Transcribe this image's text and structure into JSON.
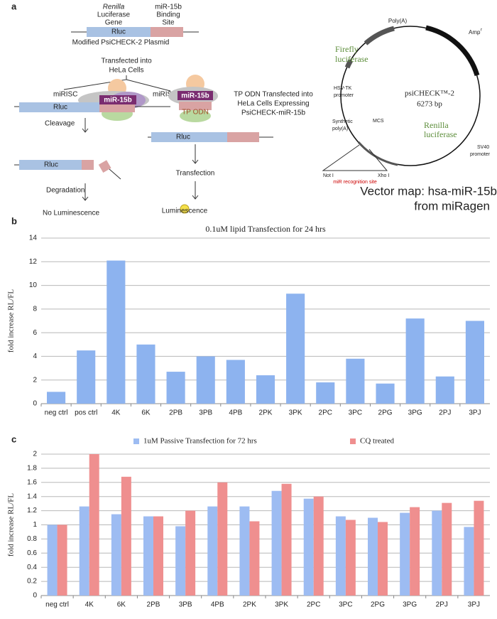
{
  "diagram": {
    "panel_label": "a",
    "gene_top": [
      "Renilla",
      "Luciferase",
      "Gene"
    ],
    "site_top": [
      "miR-15b",
      "Binding",
      "Site"
    ],
    "rluc": "Rluc",
    "plasmid": "Modified PsiCHECK-2 Plasmid",
    "transfected": [
      "Transfected into",
      "HeLa Cells"
    ],
    "mirisc": "miRISC",
    "mir": "miR-15b",
    "tp_odn": "TP ODN",
    "tp_text": [
      "TP ODN Transfected into",
      "HeLa Cells Expressing",
      "PsiCHECK-miR-15b"
    ],
    "cleavage": "Cleavage",
    "degradation": "Degradation",
    "no_lum": "No Luminescence",
    "transfection": "Transfection",
    "lum": "Luminescence",
    "vector": {
      "polya": "Poly(A)",
      "amp": "Amp",
      "amp_sup": "r",
      "firefly": [
        "Firefly",
        "luciferase"
      ],
      "hsv": [
        "HSV-TK",
        "promoter"
      ],
      "name": "psiCHECK™-2",
      "size": "6273 bp",
      "synthetic": [
        "Synthetic",
        "poly(A)"
      ],
      "mcs": "MCS",
      "renilla": [
        "Renilla",
        "luciferase"
      ],
      "sv40": [
        "SV40",
        "promoter"
      ],
      "noti": "Not I",
      "xhoi": "Xho I",
      "recog": "miR recognition site",
      "caption": [
        "Vector map: hsa-miR-15b",
        "from miRagen"
      ]
    }
  },
  "chart_data": [
    {
      "type": "bar",
      "panel_label": "b",
      "title": "0.1uM lipid Transfection for 24 hrs",
      "y_label": "fold increase RL/FL",
      "categories": [
        "neg ctrl",
        "pos ctrl",
        "4K",
        "6K",
        "2PB",
        "3PB",
        "4PB",
        "2PK",
        "3PK",
        "2PC",
        "3PC",
        "2PG",
        "3PG",
        "2PJ",
        "3PJ"
      ],
      "series": [
        {
          "color": "#8db3ef",
          "values": [
            1.0,
            4.5,
            12.1,
            5.0,
            2.7,
            4.0,
            3.7,
            2.4,
            9.3,
            1.8,
            3.8,
            1.7,
            7.2,
            2.3,
            7.0
          ]
        }
      ],
      "ylim": [
        0,
        14
      ],
      "yticks": [
        0,
        2,
        4,
        6,
        8,
        10,
        12,
        14
      ],
      "grid": true
    },
    {
      "type": "bar",
      "panel_label": "c",
      "y_label": "fold increase RL/FL",
      "categories": [
        "neg ctrl",
        "4K",
        "6K",
        "2PB",
        "3PB",
        "4PB",
        "2PK",
        "3PK",
        "2PC",
        "3PC",
        "2PG",
        "3PG",
        "2PJ",
        "3PJ"
      ],
      "series": [
        {
          "name": "1uM Passive Transfection for 72 hrs",
          "color": "#9dbcf2",
          "values": [
            1.0,
            1.26,
            1.15,
            1.12,
            0.98,
            1.26,
            1.26,
            1.48,
            1.37,
            1.12,
            1.1,
            1.17,
            1.2,
            0.97
          ]
        },
        {
          "name": "CQ treated",
          "color": "#ef8f8f",
          "values": [
            1.0,
            2.0,
            1.68,
            1.12,
            1.2,
            1.6,
            1.05,
            1.58,
            1.4,
            1.07,
            1.04,
            1.25,
            1.31,
            1.34
          ]
        }
      ],
      "ylim": [
        0,
        2
      ],
      "yticks": [
        0,
        0.2,
        0.4,
        0.6,
        0.8,
        1,
        1.2,
        1.4,
        1.6,
        1.8,
        2
      ],
      "grid": true,
      "legend": "top"
    }
  ]
}
